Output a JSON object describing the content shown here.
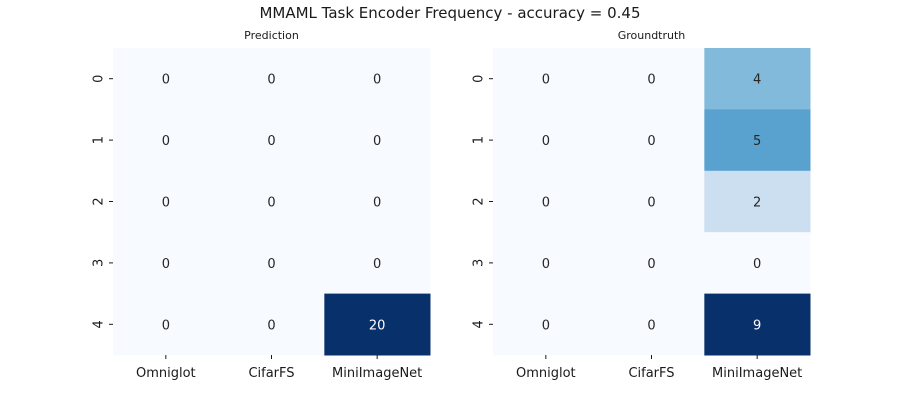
{
  "figure": {
    "title": "MMAML Task Encoder Frequency - accuracy = 0.45"
  },
  "chart_data": [
    {
      "type": "heatmap",
      "title": "Prediction",
      "x_categories": [
        "Omniglot",
        "CifarFS",
        "MiniImageNet"
      ],
      "y_categories": [
        "0",
        "1",
        "2",
        "3",
        "4"
      ],
      "values": [
        [
          0,
          0,
          0
        ],
        [
          0,
          0,
          0
        ],
        [
          0,
          0,
          0
        ],
        [
          0,
          0,
          0
        ],
        [
          0,
          0,
          20
        ]
      ],
      "colormap": "Blues",
      "colorbar": false
    },
    {
      "type": "heatmap",
      "title": "Groundtruth",
      "x_categories": [
        "Omniglot",
        "CifarFS",
        "MiniImageNet"
      ],
      "y_categories": [
        "0",
        "1",
        "2",
        "3",
        "4"
      ],
      "values": [
        [
          0,
          0,
          4
        ],
        [
          0,
          0,
          5
        ],
        [
          0,
          0,
          2
        ],
        [
          0,
          0,
          0
        ],
        [
          0,
          0,
          9
        ]
      ],
      "colormap": "Blues",
      "colorbar": false
    }
  ]
}
